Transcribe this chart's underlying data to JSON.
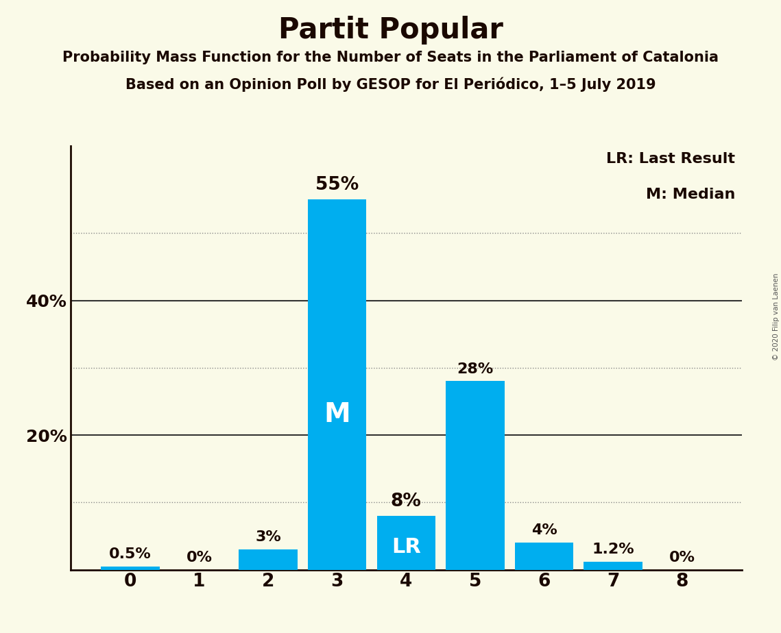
{
  "title": "Partit Popular",
  "subtitle1": "Probability Mass Function for the Number of Seats in the Parliament of Catalonia",
  "subtitle2": "Based on an Opinion Poll by GESOP for El Periódico, 1–5 July 2019",
  "copyright": "© 2020 Filip van Laenen",
  "categories": [
    0,
    1,
    2,
    3,
    4,
    5,
    6,
    7,
    8
  ],
  "values": [
    0.5,
    0.0,
    3.0,
    55.0,
    8.0,
    28.0,
    4.0,
    1.2,
    0.0
  ],
  "labels": [
    "0.5%",
    "0%",
    "3%",
    "55%",
    "8%",
    "28%",
    "4%",
    "1.2%",
    "0%"
  ],
  "bar_color": "#00AEEF",
  "background_color": "#FAFAE8",
  "median_bar": 3,
  "lr_bar": 4,
  "median_label": "M",
  "lr_label": "LR",
  "legend_lr": "LR: Last Result",
  "legend_m": "M: Median",
  "title_color": "#1a0800",
  "subtitle_color": "#1a0800",
  "label_color": "#1a0800",
  "bar_label_color_outside": "#1a0800",
  "bar_label_color_inside": "#FFFFFF",
  "yticks_solid": [
    20,
    40
  ],
  "yticks_dotted": [
    10,
    30,
    50
  ],
  "ytick_labels": [
    20,
    40
  ],
  "ylim": [
    0,
    63
  ],
  "grid_color_solid": "#333333",
  "grid_color_dotted": "#888888",
  "axis_color": "#1a0800",
  "copyright_color": "#555555"
}
